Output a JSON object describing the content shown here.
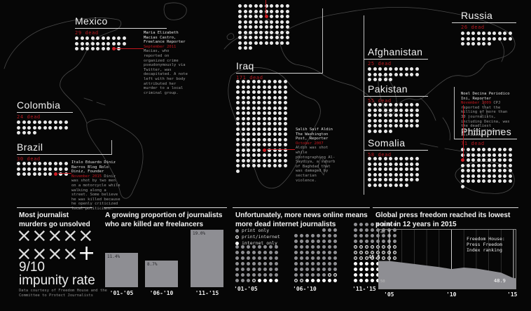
{
  "colors": {
    "background": "#060606",
    "accent_red": "#c4161d",
    "dot_white": "#e8e8e8",
    "bar_gray": "#8e8e93",
    "map_line": "#4a4a4a"
  },
  "map": {
    "countries": [
      {
        "id": "mexico",
        "label": "Mexico",
        "dead": "29 dead",
        "count": 29,
        "cols": 10,
        "red_index": 27
      },
      {
        "id": "colombia",
        "label": "Colombia",
        "dead": "24 dead",
        "count": 24,
        "cols": 10,
        "red_index": -1
      },
      {
        "id": "brazil",
        "label": "Brazil",
        "dead": "30 dead",
        "count": 30,
        "cols": 10,
        "red_index": 27
      },
      {
        "id": "unlabeled",
        "label": "",
        "dead": "",
        "count": 83,
        "cols": 10,
        "red_index": 25
      },
      {
        "id": "iraq",
        "label": "Iraq",
        "dead": "171 dead",
        "count": 171,
        "cols": 10,
        "red_index": 135
      },
      {
        "id": "afghanistan",
        "label": "Afghanistan",
        "dead": "25 dead",
        "count": 25,
        "cols": 10,
        "red_index": -1
      },
      {
        "id": "pakistan",
        "label": "Pakistan",
        "dead": "55 dead",
        "count": 55,
        "cols": 10,
        "red_index": -1
      },
      {
        "id": "somalia",
        "label": "Somalia",
        "dead": "58 dead",
        "count": 58,
        "cols": 10,
        "red_index": -1
      },
      {
        "id": "russia",
        "label": "Russia",
        "dead": "26 dead",
        "count": 26,
        "cols": 10,
        "red_index": -1
      },
      {
        "id": "philippines",
        "label": "Philippines",
        "dead": "71 dead",
        "count": 71,
        "cols": 10,
        "red_index": 20
      }
    ],
    "annotations": [
      {
        "id": "mexico",
        "name": "Maria Elizabeth Macias Castro, Freelance Reporter",
        "date": "September 2011",
        "body": "Macias, who reported on organized crime pseudonymously via Twitter, was decapitated. A note left with her body attributed her murder to a local criminal group."
      },
      {
        "id": "brazil",
        "name": "Italo Eduardo Diniz Barros Blog Rolo Diniz, Founder",
        "date": "November 2015",
        "body": "Diniz was shot by two men on a motorcycle while walking along a street. Some believe he was killed because he openly criticized local politicians."
      },
      {
        "id": "iraq",
        "name": "Salih Saif Aldin The Washington Post, Reporter",
        "date": "October 2007",
        "body": "Aldin was shot while photographing Al-Saydiya, a suburb of Baghdad that was damaged by sectarian violence."
      },
      {
        "id": "philippines",
        "name": "Noel Decina Periodico Ini, Reporter",
        "date": "November 2009",
        "body": "CPJ reported that the killing of more than 30 journalists, including Decina, was the deadliest targeted attack in its history."
      }
    ]
  },
  "panels": {
    "impunity": {
      "title": "Most journalist murders go unsolved",
      "glyph_rows": [
        [
          "×",
          "×",
          "×",
          "×",
          "×"
        ],
        [
          "×",
          "×",
          "×",
          "×",
          "+"
        ]
      ],
      "stat": "9/10",
      "stat_label": "impunity rate",
      "footnote": "Data courtesy of Freedom House and the Committee to Protect Journalists"
    },
    "freelancers": {
      "title": "A growing proportion of journalists who are killed are freelancers"
    },
    "internet": {
      "title": "Unfortunately, more news online means more dead internet journalists"
    },
    "press_freedom": {
      "title": "Global press freedom reached its lowest point in 12 years in 2015",
      "legend": "Freedom House:\nPress Freedom\nIndex ranking"
    }
  },
  "chart_data": [
    {
      "type": "bar",
      "title": "A growing proportion of journalists who are killed are freelancers",
      "categories": [
        "'01-'05",
        "'06-'10",
        "'11-'15"
      ],
      "values": [
        11.4,
        8.7,
        19.0
      ],
      "value_labels": [
        "11.4%",
        "8.7%",
        "19.0%"
      ],
      "unit": "%",
      "ylim": [
        0,
        20
      ],
      "bar_color": "#8e8e93"
    },
    {
      "type": "bar",
      "variant": "dot-matrix-units",
      "title": "Unfortunately, more news online means more dead internet journalists",
      "categories": [
        "'01-'05",
        "'06-'10",
        "'11-'15"
      ],
      "series": [
        {
          "name": "print only",
          "values": [
            51,
            65,
            32
          ]
        },
        {
          "name": "print/internet",
          "values": [
            1,
            4,
            24
          ]
        },
        {
          "name": "internet only",
          "values": [
            4,
            6,
            32
          ]
        }
      ],
      "totals": [
        56,
        75,
        88
      ],
      "legend_position": "top-left"
    },
    {
      "type": "area",
      "title": "Global press freedom reached its lowest point in 12 years in 2015",
      "x": [
        2005,
        2006,
        2007,
        2008,
        2009,
        2010,
        2011,
        2012,
        2013,
        2014,
        2015
      ],
      "values": [
        45.5,
        45.8,
        46.1,
        46.4,
        46.7,
        47.1,
        46.8,
        47.0,
        47.4,
        47.8,
        48.9
      ],
      "ylim": [
        40,
        50
      ],
      "y_inverted": true,
      "xticks": [
        "'05",
        "'10",
        "'15"
      ],
      "start_label": "45.5",
      "end_label": "48.9",
      "legend": "Freedom House:\nPress Freedom\nIndex ranking",
      "area_color": "#8e8e93",
      "grid": true
    }
  ]
}
